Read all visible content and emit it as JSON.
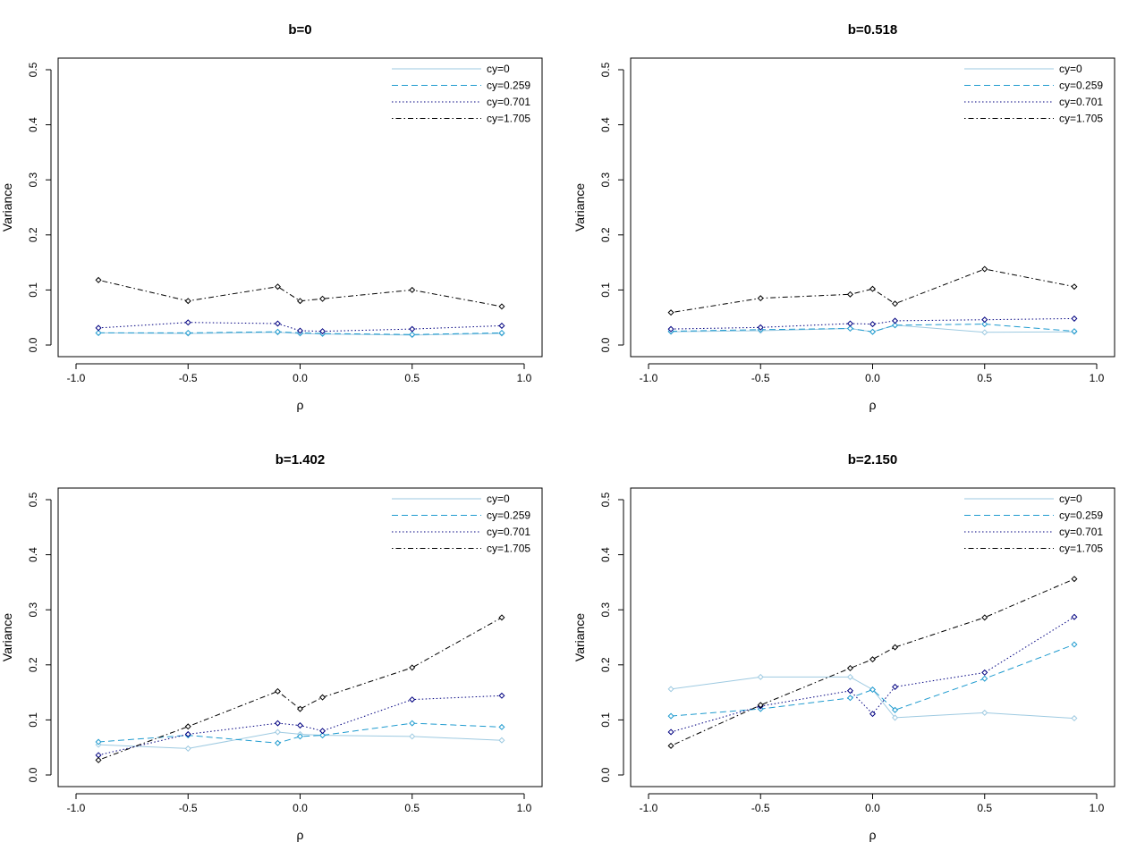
{
  "chart_data": [
    {
      "type": "line",
      "title": "b=0",
      "xlabel": "ρ",
      "ylabel": "Variance",
      "xlim": [
        -1.0,
        1.0
      ],
      "ylim": [
        0.0,
        0.5
      ],
      "xticks": [
        "-1.0",
        "-0.5",
        "0.0",
        "0.5",
        "1.0"
      ],
      "yticks": [
        "0.0",
        "0.1",
        "0.2",
        "0.3",
        "0.4",
        "0.5"
      ],
      "x": [
        -0.9,
        -0.5,
        -0.1,
        0.0,
        0.1,
        0.5,
        0.9
      ],
      "legend_position": "top-right",
      "series": [
        {
          "name": "cy=0",
          "color": "#9ecae1",
          "dash": "solid",
          "values": [
            0.022,
            0.021,
            0.023,
            0.021,
            0.02,
            0.018,
            0.021
          ]
        },
        {
          "name": "cy=0.259",
          "color": "#1f9bcf",
          "dash": "dashed",
          "values": [
            0.022,
            0.022,
            0.024,
            0.022,
            0.021,
            0.019,
            0.022
          ]
        },
        {
          "name": "cy=0.701",
          "color": "#000080",
          "dash": "dotted",
          "values": [
            0.031,
            0.041,
            0.039,
            0.026,
            0.025,
            0.029,
            0.035
          ]
        },
        {
          "name": "cy=1.705",
          "color": "#000000",
          "dash": "dotdash",
          "values": [
            0.118,
            0.08,
            0.106,
            0.08,
            0.084,
            0.1,
            0.07
          ]
        }
      ]
    },
    {
      "type": "line",
      "title": "b=0.518",
      "xlabel": "ρ",
      "ylabel": "Variance",
      "xlim": [
        -1.0,
        1.0
      ],
      "ylim": [
        0.0,
        0.5
      ],
      "xticks": [
        "-1.0",
        "-0.5",
        "0.0",
        "0.5",
        "1.0"
      ],
      "yticks": [
        "0.0",
        "0.1",
        "0.2",
        "0.3",
        "0.4",
        "0.5"
      ],
      "x": [
        -0.9,
        -0.5,
        -0.1,
        0.0,
        0.1,
        0.5,
        0.9
      ],
      "legend_position": "top-right",
      "series": [
        {
          "name": "cy=0",
          "color": "#9ecae1",
          "dash": "solid",
          "values": [
            0.024,
            0.026,
            0.03,
            0.024,
            0.036,
            0.023,
            0.024
          ]
        },
        {
          "name": "cy=0.259",
          "color": "#1f9bcf",
          "dash": "dashed",
          "values": [
            0.025,
            0.028,
            0.03,
            0.024,
            0.036,
            0.038,
            0.025
          ]
        },
        {
          "name": "cy=0.701",
          "color": "#000080",
          "dash": "dotted",
          "values": [
            0.029,
            0.032,
            0.039,
            0.038,
            0.044,
            0.046,
            0.048
          ]
        },
        {
          "name": "cy=1.705",
          "color": "#000000",
          "dash": "dotdash",
          "values": [
            0.059,
            0.085,
            0.092,
            0.102,
            0.075,
            0.138,
            0.106
          ]
        }
      ]
    },
    {
      "type": "line",
      "title": "b=1.402",
      "xlabel": "ρ",
      "ylabel": "Variance",
      "xlim": [
        -1.0,
        1.0
      ],
      "ylim": [
        0.0,
        0.5
      ],
      "xticks": [
        "-1.0",
        "-0.5",
        "0.0",
        "0.5",
        "1.0"
      ],
      "yticks": [
        "0.0",
        "0.1",
        "0.2",
        "0.3",
        "0.4",
        "0.5"
      ],
      "x": [
        -0.9,
        -0.5,
        -0.1,
        0.0,
        0.1,
        0.5,
        0.9
      ],
      "legend_position": "top-right",
      "series": [
        {
          "name": "cy=0",
          "color": "#9ecae1",
          "dash": "solid",
          "values": [
            0.055,
            0.048,
            0.078,
            0.074,
            0.072,
            0.07,
            0.063
          ]
        },
        {
          "name": "cy=0.259",
          "color": "#1f9bcf",
          "dash": "dashed",
          "values": [
            0.06,
            0.072,
            0.058,
            0.07,
            0.072,
            0.094,
            0.087
          ]
        },
        {
          "name": "cy=0.701",
          "color": "#000080",
          "dash": "dotted",
          "values": [
            0.036,
            0.074,
            0.094,
            0.09,
            0.08,
            0.137,
            0.144
          ]
        },
        {
          "name": "cy=1.705",
          "color": "#000000",
          "dash": "dotdash",
          "values": [
            0.027,
            0.088,
            0.152,
            0.12,
            0.141,
            0.195,
            0.286
          ]
        }
      ]
    },
    {
      "type": "line",
      "title": "b=2.150",
      "xlabel": "ρ",
      "ylabel": "Variance",
      "xlim": [
        -1.0,
        1.0
      ],
      "ylim": [
        0.0,
        0.5
      ],
      "xticks": [
        "-1.0",
        "-0.5",
        "0.0",
        "0.5",
        "1.0"
      ],
      "yticks": [
        "0.0",
        "0.1",
        "0.2",
        "0.3",
        "0.4",
        "0.5"
      ],
      "x": [
        -0.9,
        -0.5,
        -0.1,
        0.0,
        0.1,
        0.5,
        0.9
      ],
      "legend_position": "top-right",
      "series": [
        {
          "name": "cy=0",
          "color": "#9ecae1",
          "dash": "solid",
          "values": [
            0.156,
            0.178,
            0.178,
            0.155,
            0.104,
            0.113,
            0.103
          ]
        },
        {
          "name": "cy=0.259",
          "color": "#1f9bcf",
          "dash": "dashed",
          "values": [
            0.107,
            0.12,
            0.14,
            0.155,
            0.118,
            0.175,
            0.237
          ]
        },
        {
          "name": "cy=0.701",
          "color": "#000080",
          "dash": "dotted",
          "values": [
            0.078,
            0.125,
            0.153,
            0.111,
            0.16,
            0.186,
            0.287
          ]
        },
        {
          "name": "cy=1.705",
          "color": "#000000",
          "dash": "dotdash",
          "values": [
            0.053,
            0.127,
            0.194,
            0.21,
            0.232,
            0.286,
            0.356
          ]
        }
      ]
    }
  ]
}
